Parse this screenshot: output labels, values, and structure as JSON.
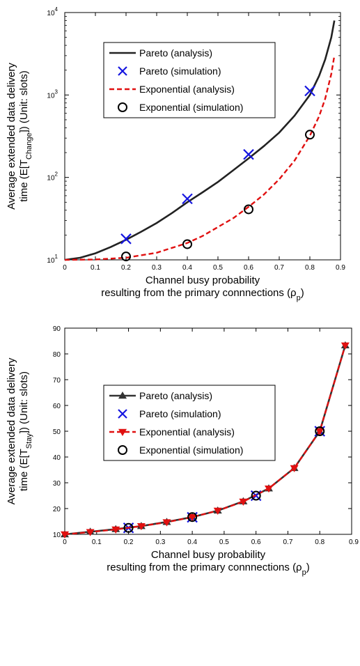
{
  "chart_data": [
    {
      "type": "line",
      "yscale": "log",
      "xlabel": "Channel busy probability",
      "xlabel2_prefix": "resulting from the primary connnections (ρ",
      "xlabel2_sub": "p",
      "xlabel2_suffix": ")",
      "ylabel1": "Average extended data delivery",
      "ylabel2_prefix": "time (E[T",
      "ylabel2_sub": "Change",
      "ylabel2_suffix": "]) (Unit: slots)",
      "xlim": [
        0,
        0.9
      ],
      "ylim": [
        10,
        10000
      ],
      "xticks": [
        "0",
        "0.1",
        "0.2",
        "0.3",
        "0.4",
        "0.5",
        "0.6",
        "0.7",
        "0.8",
        "0.9"
      ],
      "yticks": [
        {
          "base": "10",
          "exp": "1"
        },
        {
          "base": "10",
          "exp": "2"
        },
        {
          "base": "10",
          "exp": "3"
        },
        {
          "base": "10",
          "exp": "4"
        }
      ],
      "grid": false,
      "legend_position": "top-center",
      "series": [
        {
          "name": "Pareto (analysis)",
          "style": "solid-line",
          "color": "#222222",
          "x": [
            0,
            0.05,
            0.1,
            0.15,
            0.2,
            0.25,
            0.3,
            0.35,
            0.4,
            0.45,
            0.5,
            0.55,
            0.6,
            0.65,
            0.7,
            0.75,
            0.8,
            0.83,
            0.85,
            0.87,
            0.88
          ],
          "y": [
            10,
            10.6,
            12,
            14.3,
            17.5,
            22,
            28,
            37,
            50,
            66,
            88,
            122,
            170,
            240,
            350,
            560,
            1000,
            1700,
            2700,
            5000,
            8000
          ]
        },
        {
          "name": "Pareto (simulation)",
          "style": "x-marker",
          "color": "#1515e0",
          "x": [
            0.2,
            0.4,
            0.6,
            0.8
          ],
          "y": [
            18,
            55,
            190,
            1120
          ]
        },
        {
          "name": "Exponential (analysis)",
          "style": "dashed-line",
          "color": "#e01010",
          "x": [
            0,
            0.1,
            0.2,
            0.3,
            0.4,
            0.45,
            0.5,
            0.55,
            0.6,
            0.65,
            0.7,
            0.75,
            0.8,
            0.83,
            0.85,
            0.87,
            0.88
          ],
          "y": [
            10,
            10.1,
            10.6,
            12.2,
            16,
            19.5,
            25,
            32,
            44,
            62,
            95,
            160,
            320,
            550,
            900,
            1800,
            3000
          ]
        },
        {
          "name": "Exponential (simulation)",
          "style": "circle-marker",
          "color": "#000000",
          "x": [
            0.2,
            0.4,
            0.6,
            0.8
          ],
          "y": [
            11,
            15.5,
            41,
            330
          ]
        }
      ]
    },
    {
      "type": "line",
      "yscale": "linear",
      "xlabel": "Channel busy probability",
      "xlabel2_prefix": "resulting from the primary connnections (ρ",
      "xlabel2_sub": "p",
      "xlabel2_suffix": ")",
      "ylabel1": "Average extended data delivery",
      "ylabel2_prefix": "time (E[T",
      "ylabel2_sub": "Stay",
      "ylabel2_suffix": "]) (Unit: slots)",
      "xlim": [
        0,
        0.9
      ],
      "ylim": [
        10,
        90
      ],
      "xticks": [
        "0",
        "0.1",
        "0.2",
        "0.3",
        "0.4",
        "0.5",
        "0.6",
        "0.7",
        "0.8",
        "0.9"
      ],
      "yticks": [
        "10",
        "20",
        "30",
        "40",
        "50",
        "60",
        "70",
        "80",
        "90"
      ],
      "grid": false,
      "legend_position": "center-left",
      "series": [
        {
          "name": "Pareto (analysis)",
          "style": "solid-line-triangle-up",
          "color": "#333333",
          "x": [
            0,
            0.08,
            0.16,
            0.24,
            0.32,
            0.4,
            0.48,
            0.56,
            0.64,
            0.72,
            0.8,
            0.88
          ],
          "y": [
            10,
            11,
            12,
            13.2,
            14.8,
            16.7,
            19.2,
            22.8,
            27.8,
            35.7,
            50,
            83.3
          ]
        },
        {
          "name": "Pareto (simulation)",
          "style": "x-marker",
          "color": "#1515e0",
          "x": [
            0.2,
            0.4,
            0.6,
            0.8
          ],
          "y": [
            12.5,
            16.6,
            25,
            50
          ]
        },
        {
          "name": "Exponential (analysis)",
          "style": "dashed-line-triangle-down",
          "color": "#e01010",
          "x": [
            0,
            0.08,
            0.16,
            0.24,
            0.32,
            0.4,
            0.48,
            0.56,
            0.64,
            0.72,
            0.8,
            0.88
          ],
          "y": [
            10,
            10.9,
            11.9,
            13.2,
            14.7,
            16.7,
            19.2,
            22.7,
            27.8,
            35.7,
            50,
            83.3
          ]
        },
        {
          "name": "Exponential (simulation)",
          "style": "circle-marker",
          "color": "#000000",
          "x": [
            0.2,
            0.4,
            0.6,
            0.8
          ],
          "y": [
            12.5,
            16.7,
            25,
            50
          ]
        }
      ]
    }
  ]
}
